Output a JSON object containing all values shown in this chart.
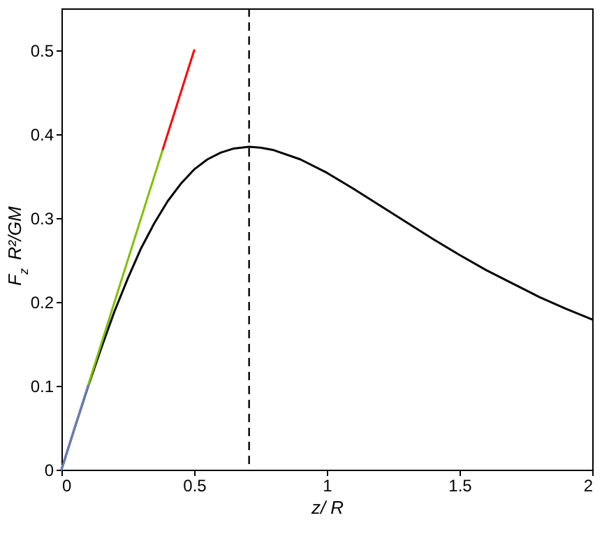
{
  "chart_data": {
    "type": "line",
    "xlabel": "z/ R",
    "ylabel": "F$_{z}$ R²/GM",
    "xlim": [
      0,
      2
    ],
    "ylim": [
      0,
      0.55
    ],
    "xticks": [
      0,
      0.5,
      1,
      1.5,
      2
    ],
    "yticks": [
      0,
      0.1,
      0.2,
      0.3,
      0.4,
      0.5
    ],
    "grid": false,
    "legend": false,
    "line_style": "solid",
    "series": [
      {
        "color": "#000000",
        "x": [
          0,
          0.05,
          0.1,
          0.15,
          0.2,
          0.25,
          0.3,
          0.35,
          0.4,
          0.45,
          0.5,
          0.55,
          0.6,
          0.65,
          0.707,
          0.75,
          0.8,
          0.9,
          1.0,
          1.1,
          1.2,
          1.3,
          1.4,
          1.5,
          1.6,
          1.7,
          1.8,
          1.9,
          2.0
        ],
        "values": [
          0,
          0.05,
          0.099,
          0.145,
          0.189,
          0.228,
          0.264,
          0.294,
          0.32,
          0.341,
          0.358,
          0.37,
          0.378,
          0.383,
          0.385,
          0.384,
          0.381,
          0.37,
          0.354,
          0.335,
          0.315,
          0.295,
          0.275,
          0.256,
          0.238,
          0.222,
          0.206,
          0.192,
          0.179
        ]
      },
      {
        "color": "#ff0000",
        "x": [
          0.38,
          0.5
        ],
        "values": [
          0.38,
          0.5
        ]
      },
      {
        "color": "#80c000",
        "x": [
          0.1,
          0.38
        ],
        "values": [
          0.1,
          0.38
        ]
      },
      {
        "color": "#6a80b8",
        "x": [
          0,
          0.1
        ],
        "values": [
          0,
          0.1
        ]
      }
    ],
    "ref_lines": [
      {
        "axis": "x",
        "value": 0.707,
        "color": "#000000",
        "line_style": "dashed"
      }
    ]
  }
}
